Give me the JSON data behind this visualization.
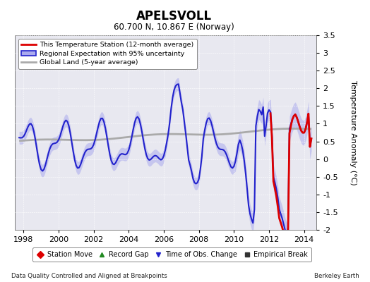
{
  "title": "APELSVOLL",
  "subtitle": "60.700 N, 10.867 E (Norway)",
  "ylabel": "Temperature Anomaly (°C)",
  "footer_left": "Data Quality Controlled and Aligned at Breakpoints",
  "footer_right": "Berkeley Earth",
  "xlim": [
    1997.5,
    2014.7
  ],
  "ylim": [
    -2.0,
    3.5
  ],
  "yticks": [
    -2,
    -1.5,
    -1,
    -0.5,
    0,
    0.5,
    1,
    1.5,
    2,
    2.5,
    3,
    3.5
  ],
  "xticks": [
    1998,
    2000,
    2002,
    2004,
    2006,
    2008,
    2010,
    2012,
    2014
  ],
  "bg_color": "#e8e8f0",
  "grid_color": "#ffffff",
  "regional_color": "#2222cc",
  "regional_lw": 1.5,
  "uncertainty_color": "#aaaaee",
  "uncertainty_alpha": 0.55,
  "station_color": "#dd0000",
  "station_lw": 2.0,
  "global_color": "#aaaaaa",
  "global_lw": 2.0,
  "legend_station": "This Temperature Station (12-month average)",
  "legend_regional": "Regional Expectation with 95% uncertainty",
  "legend_global": "Global Land (5-year average)",
  "bottom_legend": [
    {
      "label": "Station Move",
      "marker": "D",
      "color": "#dd0000"
    },
    {
      "label": "Record Gap",
      "marker": "^",
      "color": "#228B22"
    },
    {
      "label": "Time of Obs. Change",
      "marker": "v",
      "color": "#2222cc"
    },
    {
      "label": "Empirical Break",
      "marker": "s",
      "color": "#333333"
    }
  ],
  "footer_left_text": "Data Quality Controlled and Aligned at Breakpoints",
  "footer_right_text": "Berkeley Earth"
}
